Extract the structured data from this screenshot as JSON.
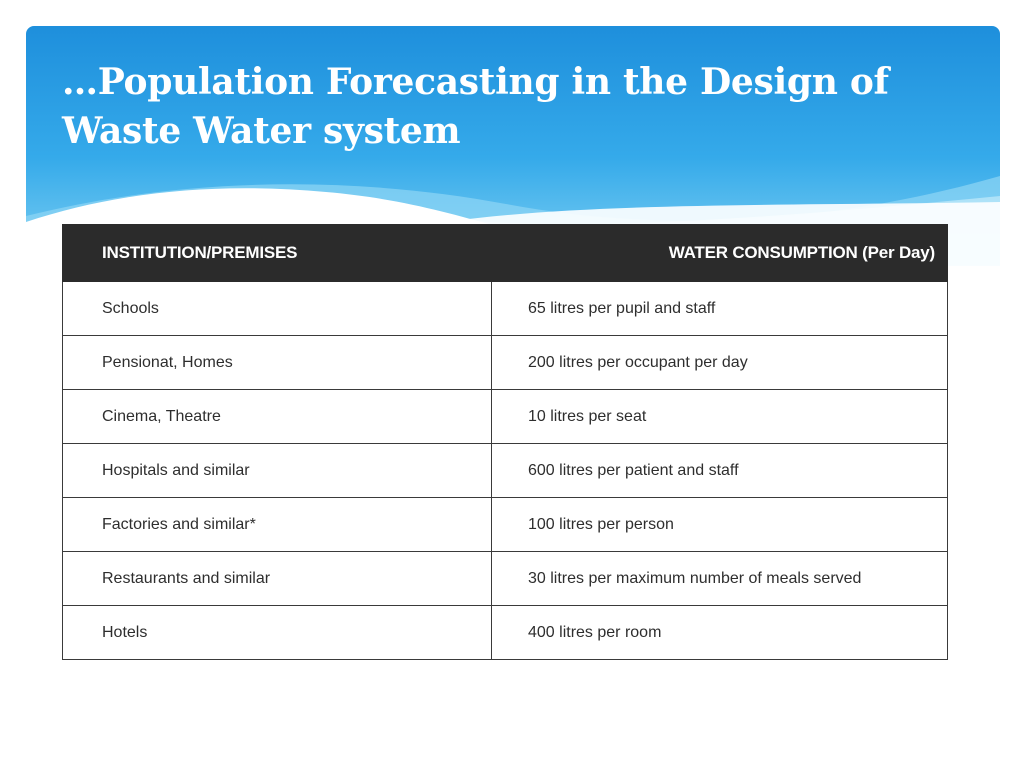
{
  "slide": {
    "title_line1": "…Population Forecasting in the Design of",
    "title_line2": "Waste Water system"
  },
  "colors": {
    "header_light": "#7fd0f2",
    "header_mid": "#35aaea",
    "header_dark": "#1e8fdc",
    "table_header_bg": "#2b2b2b"
  },
  "table": {
    "headers": [
      "INSTITUTION/PREMISES",
      "WATER CONSUMPTION (Per Day)"
    ],
    "rows": [
      {
        "premises": "Schools",
        "consumption": "65 litres per pupil and staff"
      },
      {
        "premises": "Pensionat, Homes",
        "consumption": "200 litres per occupant per day"
      },
      {
        "premises": "Cinema, Theatre",
        "consumption": "10 litres per seat"
      },
      {
        "premises": "Hospitals and similar",
        "consumption": "600 litres per patient and staff"
      },
      {
        "premises": "Factories and similar*",
        "consumption": "100 litres per person"
      },
      {
        "premises": "Restaurants and similar",
        "consumption": "30 litres per maximum number of meals served"
      },
      {
        "premises": "Hotels",
        "consumption": "400 litres per room"
      }
    ]
  }
}
